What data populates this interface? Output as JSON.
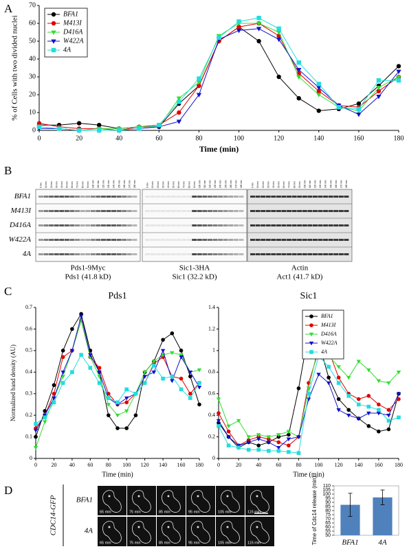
{
  "panel_labels": [
    "A",
    "B",
    "C",
    "D"
  ],
  "chart_data": [
    {
      "type": "line",
      "ylabel": "% of Cells with two divided nuclei",
      "xlabel": "Time (min)",
      "x": [
        0,
        10,
        20,
        30,
        40,
        50,
        60,
        70,
        80,
        90,
        100,
        110,
        120,
        130,
        140,
        150,
        160,
        170,
        180
      ],
      "xlim": [
        0,
        180
      ],
      "xticks": [
        0,
        20,
        40,
        60,
        80,
        100,
        120,
        140,
        160,
        180
      ],
      "ylim": [
        0,
        70
      ],
      "yticks": [
        0,
        10,
        20,
        30,
        40,
        50,
        60,
        70
      ],
      "legend": "upper left",
      "series": [
        {
          "name": "BFA1",
          "color": "#000000",
          "marker": "circle",
          "values": [
            3,
            3,
            4,
            3,
            1,
            2,
            2,
            15,
            25,
            50,
            58,
            50,
            30,
            18,
            11,
            12,
            15,
            25,
            36
          ]
        },
        {
          "name": "M413I",
          "color": "#e00000",
          "marker": "circle",
          "values": [
            4,
            2,
            1,
            1,
            0,
            2,
            3,
            10,
            25,
            50,
            58,
            60,
            53,
            32,
            22,
            14,
            13,
            22,
            30
          ]
        },
        {
          "name": "D416A",
          "color": "#33dd33",
          "marker": "triangle-down",
          "values": [
            2,
            1,
            0,
            1,
            1,
            2,
            2,
            18,
            27,
            53,
            60,
            60,
            55,
            30,
            20,
            13,
            11,
            24,
            30
          ]
        },
        {
          "name": "W422A",
          "color": "#1111cc",
          "marker": "triangle-down",
          "values": [
            1,
            1,
            0,
            0,
            0,
            1,
            2,
            5,
            20,
            51,
            56,
            57,
            51,
            34,
            24,
            14,
            9,
            19,
            33
          ]
        },
        {
          "name": "4A",
          "color": "#22dddd",
          "marker": "square",
          "values": [
            2,
            1,
            0,
            0,
            0,
            1,
            3,
            16,
            29,
            52,
            61,
            63,
            57,
            38,
            26,
            13,
            12,
            28,
            28
          ]
        }
      ]
    },
    {
      "type": "line",
      "title": "Pds1",
      "ylabel": "Normalized band density (AU)",
      "xlabel": "Time (min)",
      "x": [
        0,
        10,
        20,
        30,
        40,
        50,
        60,
        70,
        80,
        90,
        100,
        110,
        120,
        130,
        140,
        150,
        160,
        170,
        180
      ],
      "xlim": [
        0,
        180
      ],
      "xticks": [
        0,
        20,
        40,
        60,
        80,
        100,
        120,
        140,
        160,
        180
      ],
      "ylim": [
        0,
        0.7
      ],
      "yticks": [
        0,
        0.1,
        0.2,
        0.3,
        0.4,
        0.5,
        0.6,
        0.7
      ],
      "series": [
        {
          "name": "BFA1",
          "color": "#000000",
          "marker": "circle",
          "values": [
            0.1,
            0.22,
            0.34,
            0.5,
            0.6,
            0.67,
            0.5,
            0.4,
            0.2,
            0.14,
            0.14,
            0.2,
            0.4,
            0.45,
            0.55,
            0.58,
            0.5,
            0.38,
            0.25
          ]
        },
        {
          "name": "M413I",
          "color": "#e00000",
          "marker": "circle",
          "values": [
            0.14,
            0.2,
            0.3,
            0.47,
            0.5,
            0.64,
            0.47,
            0.42,
            0.3,
            0.25,
            0.26,
            0.3,
            0.35,
            0.44,
            0.47,
            0.38,
            0.37,
            0.3,
            0.35
          ]
        },
        {
          "name": "D416A",
          "color": "#33dd33",
          "marker": "triangle-down",
          "values": [
            0.05,
            0.17,
            0.28,
            0.38,
            0.5,
            0.64,
            0.47,
            0.38,
            0.25,
            0.2,
            0.22,
            0.3,
            0.4,
            0.45,
            0.48,
            0.49,
            0.48,
            0.4,
            0.41
          ]
        },
        {
          "name": "W422A",
          "color": "#1111cc",
          "marker": "triangle-down",
          "values": [
            0.13,
            0.2,
            0.28,
            0.4,
            0.5,
            0.66,
            0.48,
            0.4,
            0.28,
            0.25,
            0.28,
            0.3,
            0.38,
            0.4,
            0.5,
            0.36,
            0.47,
            0.4,
            0.33
          ]
        },
        {
          "name": "4A",
          "color": "#22dddd",
          "marker": "square",
          "values": [
            0.16,
            0.19,
            0.26,
            0.35,
            0.4,
            0.48,
            0.42,
            0.35,
            0.28,
            0.26,
            0.32,
            0.3,
            0.35,
            0.43,
            0.37,
            0.38,
            0.32,
            0.28,
            0.35
          ]
        }
      ]
    },
    {
      "type": "line",
      "title": "Sic1",
      "xlabel": "Time (min)",
      "x": [
        0,
        10,
        20,
        30,
        40,
        50,
        60,
        70,
        80,
        90,
        100,
        110,
        120,
        130,
        140,
        150,
        160,
        170,
        180
      ],
      "xlim": [
        0,
        180
      ],
      "xticks": [
        0,
        20,
        40,
        60,
        80,
        100,
        120,
        140,
        160,
        180
      ],
      "ylim": [
        0,
        1.4
      ],
      "yticks": [
        0,
        0.2,
        0.4,
        0.6,
        0.8,
        1,
        1.2,
        1.4
      ],
      "legend": "upper right",
      "series": [
        {
          "name": "BFA1",
          "color": "#000000",
          "marker": "circle",
          "values": [
            0.33,
            0.2,
            0.1,
            0.15,
            0.12,
            0.15,
            0.2,
            0.22,
            0.65,
            1.17,
            1.08,
            0.75,
            0.55,
            0.45,
            0.37,
            0.3,
            0.25,
            0.27,
            0.6
          ]
        },
        {
          "name": "M413I",
          "color": "#e00000",
          "marker": "circle",
          "values": [
            0.42,
            0.25,
            0.12,
            0.17,
            0.2,
            0.18,
            0.15,
            0.12,
            0.2,
            0.7,
            1.0,
            1.0,
            0.75,
            0.6,
            0.55,
            0.58,
            0.5,
            0.45,
            0.55
          ]
        },
        {
          "name": "D416A",
          "color": "#33dd33",
          "marker": "triangle-down",
          "values": [
            0.55,
            0.3,
            0.35,
            0.2,
            0.22,
            0.2,
            0.22,
            0.25,
            0.2,
            0.65,
            1.05,
            0.95,
            0.85,
            0.75,
            0.9,
            0.82,
            0.72,
            0.7,
            0.8
          ]
        },
        {
          "name": "W422A",
          "color": "#1111cc",
          "marker": "triangle-down",
          "values": [
            0.35,
            0.2,
            0.12,
            0.15,
            0.18,
            0.15,
            0.1,
            0.18,
            0.2,
            0.55,
            0.78,
            0.7,
            0.45,
            0.4,
            0.37,
            0.42,
            0.42,
            0.4,
            0.6
          ]
        },
        {
          "name": "4A",
          "color": "#22dddd",
          "marker": "square",
          "values": [
            0.3,
            0.12,
            0.1,
            0.08,
            0.08,
            0.07,
            0.07,
            0.06,
            0.05,
            0.6,
            0.95,
            0.85,
            0.7,
            0.58,
            0.5,
            0.48,
            0.45,
            0.35,
            0.38
          ]
        }
      ]
    },
    {
      "type": "bar",
      "ylabel": "Time of Cdc14 release (min)",
      "categories": [
        "BFA1",
        "4A"
      ],
      "values": [
        87,
        96
      ],
      "errors": [
        14,
        9
      ],
      "color": "#4f81bd",
      "ylim": [
        50,
        110
      ],
      "yticks": [
        50,
        55,
        60,
        65,
        70,
        75,
        80,
        85,
        90,
        95,
        100,
        105,
        110
      ]
    }
  ],
  "blots": {
    "rows": [
      "BFA1",
      "M413I",
      "D416A",
      "W422A",
      "4A"
    ],
    "lanes": [
      "0 min",
      "10 min",
      "20 min",
      "30 min",
      "40 min",
      "50 min",
      "60 min",
      "70 min",
      "80 min",
      "90 min",
      "100 min",
      "110 min",
      "120 min",
      "130 min",
      "140 min",
      "150 min",
      "160 min",
      "170 min",
      "180 min"
    ],
    "panels": [
      {
        "name": "Pds1-9Myc",
        "protein": "Pds1 (41.8 kD)"
      },
      {
        "name": "Sic1-3HA",
        "protein": "Sic1 (32.2 kD)"
      },
      {
        "name": "Actin",
        "protein": "Act1 (41.7 kD)"
      }
    ]
  },
  "microscopy": {
    "label": "CDC14-GFP",
    "rows": [
      {
        "label": "BFA1",
        "times": [
          "65 min",
          "75 min",
          "85 min",
          "95 min",
          "105 min",
          "115 min"
        ]
      },
      {
        "label": "4A",
        "times": [
          "65 min",
          "75 min",
          "85 min",
          "95 min",
          "105 min",
          "115 min"
        ]
      }
    ]
  }
}
